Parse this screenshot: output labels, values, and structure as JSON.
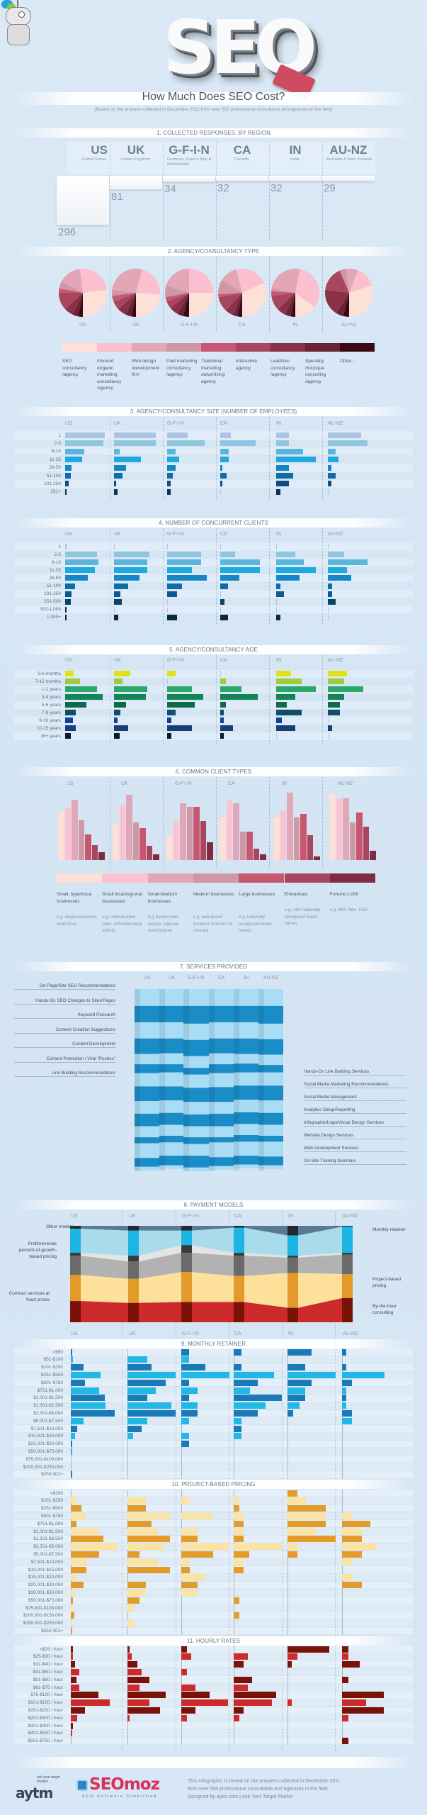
{
  "header": {
    "logo": "SEO",
    "title": "How Much Does SEO Cost?",
    "subtitle": "(Based on the answers collected in December 2011 from over 500 professional consultants and agencies in the field)"
  },
  "regions": [
    {
      "code": "US",
      "name": "United States",
      "responses": 296
    },
    {
      "code": "UK",
      "name": "United Kingdom",
      "responses": 81
    },
    {
      "code": "G-F-I-N",
      "name": "Germany, France Italy & Netherlands",
      "responses": 34
    },
    {
      "code": "CA",
      "name": "Canada",
      "responses": 32
    },
    {
      "code": "IN",
      "name": "India",
      "responses": 32
    },
    {
      "code": "AU-NZ",
      "name": "Australia & New Zealand",
      "responses": 29
    }
  ],
  "sections": {
    "s1": "1. COLLECTED RESPONSES, BY REGION",
    "s2": "2. AGENCY/CONSULTANCY TYPE",
    "s3": "3. AGENCY/CONSULTANCY SIZE (NUMBER OF EMPLOYEES)",
    "s4": "4. NUMBER OF CONCURRENT CLIENTS",
    "s5": "5. AGENCY/CONSULTANCY AGE",
    "s6": "6. COMMON CLIENT TYPES",
    "s7": "7. SERVICES PROVIDED",
    "s8": "8. PAYMENT MODELS",
    "s9": "9. MONTHLY RETAINER",
    "s10": "10. PROJECT-BASED PRICING",
    "s11": "11. HOURLY RATES"
  },
  "chart_data": [
    {
      "id": "responses",
      "type": "bar",
      "categories": [
        "US",
        "UK",
        "G-F-I-N",
        "CA",
        "IN",
        "AU-NZ"
      ],
      "values": [
        296,
        81,
        34,
        32,
        32,
        29
      ]
    },
    {
      "id": "agency_type",
      "type": "pie",
      "legend": [
        "SEO consultancy /agency",
        "Inbound /organic marketing consultancy /agency",
        "Web design /development firm",
        "Paid marketing consultancy /agency",
        "Traditional marketing /advertising agency",
        "Interactive agency",
        "LeadGen consultancy /agency",
        "Specialty /boutique consulting /agency",
        "Other..."
      ],
      "colors": [
        "#fde0d6",
        "#fbbfcf",
        "#e2a6b6",
        "#cf97a6",
        "#c85773",
        "#a8465e",
        "#8a3048",
        "#6a2336",
        "#3b0a16"
      ],
      "series": [
        [
          27,
          25,
          15,
          5,
          3,
          12,
          6,
          4,
          3
        ],
        [
          24,
          22,
          27,
          4,
          4,
          6,
          6,
          4,
          3
        ],
        [
          25,
          25,
          20,
          8,
          3,
          5,
          6,
          4,
          4
        ],
        [
          32,
          22,
          12,
          10,
          2,
          10,
          6,
          3,
          3
        ],
        [
          15,
          32,
          25,
          2,
          3,
          10,
          6,
          4,
          3
        ],
        [
          30,
          14,
          8,
          4,
          1,
          16,
          18,
          5,
          4
        ]
      ]
    },
    {
      "id": "size",
      "type": "bar",
      "categories": [
        "1",
        "2-5",
        "6-10",
        "11-25",
        "26-50",
        "51-100",
        "101-250",
        "251+"
      ],
      "colors": [
        "#aac4e2",
        "#8fc5df",
        "#5cb5db",
        "#1eaadf",
        "#1586c6",
        "#0f6ca8",
        "#0d4f80",
        "#0b3550"
      ],
      "series": [
        [
          37,
          36,
          18,
          16,
          6,
          5,
          3,
          1
        ],
        [
          39,
          39,
          5,
          25,
          11,
          8,
          2,
          3
        ],
        [
          19,
          35,
          8,
          11,
          8,
          5,
          3,
          3
        ],
        [
          10,
          33,
          8,
          8,
          2,
          6,
          2,
          0
        ],
        [
          12,
          12,
          25,
          37,
          12,
          16,
          12,
          4
        ],
        [
          31,
          37,
          7,
          10,
          3,
          7,
          3,
          0
        ]
      ]
    },
    {
      "id": "clients",
      "type": "bar",
      "categories": [
        "1",
        "2-5",
        "6-10",
        "11-25",
        "26-50",
        "51-100",
        "101-250",
        "251-500",
        "501-1,000",
        "1,000+"
      ],
      "colors": [
        "#aac4e2",
        "#8fc5df",
        "#5cb5db",
        "#1eaadf",
        "#1586c6",
        "#0f6ca8",
        "#0d5a8e",
        "#0c4468",
        "#0b3550",
        "#0a2a40"
      ],
      "series": [
        [
          1,
          30,
          31,
          28,
          21,
          9,
          6,
          5,
          1,
          1
        ],
        [
          0,
          33,
          31,
          31,
          24,
          13,
          6,
          7,
          0,
          4
        ],
        [
          0,
          32,
          32,
          23,
          37,
          14,
          9,
          0,
          0,
          9
        ],
        [
          0,
          14,
          37,
          37,
          18,
          7,
          0,
          4,
          0,
          7
        ],
        [
          0,
          18,
          26,
          37,
          22,
          4,
          7,
          0,
          0,
          4
        ],
        [
          0,
          15,
          37,
          18,
          22,
          4,
          4,
          7,
          0,
          0
        ]
      ]
    },
    {
      "id": "age",
      "type": "bar",
      "categories": [
        "0-6 months",
        "7-12 months",
        "1-2 years",
        "3-4 years",
        "5-6 years",
        "7-8 years",
        "9-10 years",
        "10-15 years",
        "16+ years"
      ],
      "colors": [
        "#dde21c",
        "#9dcc3c",
        "#2aa86a",
        "#138456",
        "#0f6a4a",
        "#0e4f66",
        "#1340a0",
        "#163f78",
        "#0d1a2a"
      ],
      "series": [
        [
          8,
          14,
          30,
          35,
          20,
          10,
          7,
          10,
          5
        ],
        [
          15,
          8,
          31,
          30,
          11,
          6,
          3,
          13,
          5
        ],
        [
          8,
          0,
          23,
          34,
          26,
          8,
          4,
          23,
          4
        ],
        [
          0,
          5,
          20,
          35,
          5,
          3,
          3,
          12,
          3
        ],
        [
          14,
          24,
          37,
          18,
          10,
          24,
          5,
          18,
          0
        ],
        [
          18,
          15,
          33,
          15,
          11,
          11,
          0,
          4,
          0
        ]
      ]
    },
    {
      "id": "client_types",
      "type": "bar",
      "categories": [
        "Small, hyperlocal businesses",
        "Small local/regional businesses",
        "Small-Medium businesses",
        "Medium businesses",
        "Large businesses",
        "Enterprises",
        "Fortune 1,000"
      ],
      "examples": [
        "e.g. single restaurant, retail store",
        "e.g. multi-location retail, unfunded early startup",
        "e.g. funded web startup, regional manufacturer",
        "e.g. web-based business $10mm+ in revenue",
        "e.g. nationally recognized brand names",
        "e.g. inter-nationally recognized brand names",
        "e.g. IBM, Nike, P&G"
      ],
      "colors": [
        "#fde0d6",
        "#fbc3d2",
        "#e0a7b6",
        "#cd97a5",
        "#c9566f",
        "#a84660",
        "#7d2c44"
      ],
      "series": [
        [
          67,
          73,
          85,
          56,
          36,
          21,
          11
        ],
        [
          50,
          78,
          92,
          53,
          45,
          20,
          8
        ],
        [
          35,
          55,
          80,
          75,
          75,
          55,
          25
        ],
        [
          60,
          84,
          80,
          40,
          40,
          16,
          8
        ],
        [
          60,
          70,
          95,
          60,
          65,
          35,
          5
        ],
        [
          93,
          87,
          87,
          53,
          67,
          47,
          13
        ]
      ]
    },
    {
      "id": "services",
      "type": "area",
      "categories": [
        "On-Page/Site SEO Recommendations",
        "Hands-On SEO Changes to Sites/Pages",
        "Keyword Research",
        "Content Creation Suggestions",
        "Content Development",
        "Content Promotion / Viral \"Pushes\"",
        "Link Building Recommendations",
        "Hands-On Link Building Services",
        "Social Media Marketing Recommendations",
        "Social Media Management",
        "Analytics Setup/Reporting",
        "Infographic/Logo/Visual Design Services",
        "Website Design Services",
        "Web Development Services",
        "On-Site Training Seminars"
      ],
      "colors": [
        "#a9dcf5",
        "#1a8cc8"
      ],
      "series": [
        [
          23,
          23,
          23,
          23,
          23,
          23
        ],
        [
          22,
          22,
          24,
          22,
          22,
          24
        ],
        [
          22,
          22,
          22,
          22,
          22,
          21
        ],
        [
          21,
          20,
          22,
          20,
          21,
          21
        ],
        [
          14,
          15,
          16,
          15,
          13,
          14
        ],
        [
          12,
          11,
          9,
          12,
          12,
          10
        ],
        [
          18,
          19,
          18,
          19,
          18,
          18
        ],
        [
          20,
          19,
          19,
          20,
          19,
          20
        ],
        [
          17,
          17,
          17,
          16,
          17,
          17
        ],
        [
          17,
          16,
          16,
          17,
          16,
          16
        ],
        [
          15,
          15,
          15,
          15,
          15,
          15
        ],
        [
          8,
          9,
          9,
          7,
          9,
          8
        ],
        [
          20,
          18,
          16,
          20,
          19,
          20
        ],
        [
          12,
          13,
          16,
          12,
          12,
          12
        ],
        [
          5,
          5,
          5,
          5,
          5,
          5
        ]
      ]
    },
    {
      "id": "payment",
      "type": "area",
      "categories": [
        "Other models",
        "Monthly retainer",
        "Profit/revenue percent-of-growth-based pricing",
        "Contract services at fixed prices",
        "Project-based pricing",
        "By-the-hour consulting"
      ],
      "colors": [
        "#222a30",
        "#1db4e6",
        "#3a3a3a",
        "#6a6a6a",
        "#e39a2a",
        "#7a1208"
      ],
      "light_colors": [
        "#5a7a94",
        "#a8dcec",
        "#e4e4e4",
        "#b2b2b2",
        "#fde09a",
        "#cc2a2a"
      ],
      "series": [
        [
          3,
          25,
          3,
          20,
          27,
          22
        ],
        [
          5,
          26,
          6,
          18,
          25,
          20
        ],
        [
          5,
          15,
          8,
          20,
          31,
          21
        ],
        [
          2,
          26,
          3,
          21,
          27,
          21
        ],
        [
          10,
          21,
          2,
          16,
          36,
          15
        ],
        [
          1,
          27,
          2,
          20,
          25,
          25
        ]
      ]
    },
    {
      "id": "retainer",
      "type": "bar",
      "categories": [
        "<$50",
        "$51-$100",
        "$101-$250",
        "$251-$500",
        "$501-$750",
        "$751-$1,000",
        "$1,001-$1,500",
        "$1,501-$2,500",
        "$2,501-$5,000",
        "$5,001-$7,500",
        "$7,501-$10,000",
        "$10,001-$25,000",
        "$25,001-$50,000",
        "$50,001-$75,000",
        "$75,001-$100,000",
        "$100,001-$250,000",
        "$250,001+"
      ],
      "colors": [
        "#1a7ab8",
        "#22b8e6"
      ],
      "series": [
        [
          1,
          2,
          12,
          27,
          13,
          26,
          31,
          32,
          40,
          12,
          6,
          4,
          1,
          1,
          0,
          0,
          1
        ],
        [
          0,
          18,
          22,
          44,
          35,
          26,
          18,
          40,
          44,
          18,
          13,
          5,
          0,
          0,
          0,
          0,
          0
        ],
        [
          7,
          7,
          22,
          44,
          7,
          15,
          7,
          15,
          15,
          7,
          0,
          7,
          7,
          0,
          0,
          0,
          0
        ],
        [
          7,
          0,
          7,
          37,
          22,
          15,
          44,
          29,
          22,
          7,
          7,
          7,
          0,
          0,
          0,
          0,
          0
        ],
        [
          22,
          0,
          16,
          44,
          22,
          16,
          16,
          11,
          5,
          0,
          0,
          0,
          0,
          0,
          0,
          0,
          0
        ],
        [
          4,
          0,
          4,
          39,
          9,
          4,
          4,
          4,
          9,
          9,
          0,
          0,
          0,
          0,
          0,
          0,
          0
        ]
      ]
    },
    {
      "id": "project",
      "type": "bar",
      "categories": [
        "<$100",
        "$101-$250",
        "$251-$500",
        "$501-$750",
        "$751-$1,000",
        "$1,001-$1,500",
        "$1,501-$2,500",
        "$2,501-$5,000",
        "$5,001-$7,500",
        "$7,501-$10,000",
        "$10,001-$15,000",
        "$15,001-$20,000",
        "$20,001-$30,000",
        "$30,001-$50,000",
        "$50,001-$75,000",
        "$75,001-$100,000",
        "$100,001-$150,000",
        "$150,001-$250,000",
        "$250,001+"
      ],
      "colors": [
        "#e39b2a",
        "#fde3a0"
      ],
      "series": [
        [
          0,
          5,
          10,
          14,
          5,
          25,
          30,
          43,
          26,
          15,
          14,
          5,
          12,
          4,
          2,
          2,
          3,
          1,
          1
        ],
        [
          0,
          17,
          17,
          39,
          22,
          28,
          39,
          33,
          11,
          28,
          39,
          0,
          17,
          17,
          11,
          6,
          0,
          6,
          0
        ],
        [
          0,
          8,
          0,
          29,
          0,
          15,
          15,
          44,
          29,
          8,
          8,
          22,
          15,
          15,
          0,
          0,
          0,
          0,
          0
        ],
        [
          0,
          5,
          5,
          9,
          9,
          9,
          9,
          44,
          14,
          9,
          9,
          0,
          0,
          0,
          5,
          0,
          5,
          0,
          0
        ],
        [
          9,
          17,
          35,
          35,
          35,
          26,
          44,
          9,
          9,
          0,
          0,
          0,
          0,
          0,
          0,
          0,
          0,
          0,
          0
        ],
        [
          0,
          0,
          0,
          9,
          26,
          18,
          18,
          32,
          18,
          9,
          0,
          9,
          18,
          0,
          0,
          0,
          0,
          0,
          0
        ]
      ]
    },
    {
      "id": "hourly",
      "type": "bar",
      "categories": [
        "<$25 / hour",
        "$25-$30 / hour",
        "$31-$40 / hour",
        "$41-$50 / hour",
        "$51-$60 / hour",
        "$61-$75 / hour",
        "$76-$100 / hour",
        "$101-$150 / hour",
        "$151-$200 / hour",
        "$201-$300 / hour",
        "$301-$400 / hour",
        "$401-$500 / hour",
        "$501-$750 / hour"
      ],
      "colors": [
        "#7a1208",
        "#cf2a2a"
      ],
      "series": [
        [
          2,
          2,
          4,
          8,
          5,
          8,
          25,
          36,
          13,
          6,
          2,
          1,
          0
        ],
        [
          2,
          4,
          9,
          13,
          20,
          11,
          35,
          20,
          30,
          2,
          0,
          0,
          0
        ],
        [
          5,
          9,
          0,
          5,
          0,
          13,
          26,
          43,
          13,
          5,
          0,
          0,
          0
        ],
        [
          0,
          13,
          9,
          0,
          17,
          13,
          39,
          35,
          9,
          5,
          0,
          0,
          0
        ],
        [
          38,
          9,
          4,
          0,
          0,
          0,
          0,
          4,
          0,
          0,
          0,
          0,
          0
        ],
        [
          6,
          6,
          16,
          0,
          6,
          0,
          38,
          22,
          38,
          6,
          0,
          0,
          6
        ]
      ]
    }
  ],
  "footer": {
    "aytm_logo": "aytm",
    "aytm_tagline": "ask your target market",
    "seomoz_logo": "SEOmoz",
    "seomoz_tagline": "SEO Software Simplified",
    "text1": "This Infographic is based on the answers collected in December 2011",
    "text2": "from over 500 professional consultants and agencies in the field.",
    "text3": "Designed by aytm.com | Ask Your Target Market"
  }
}
